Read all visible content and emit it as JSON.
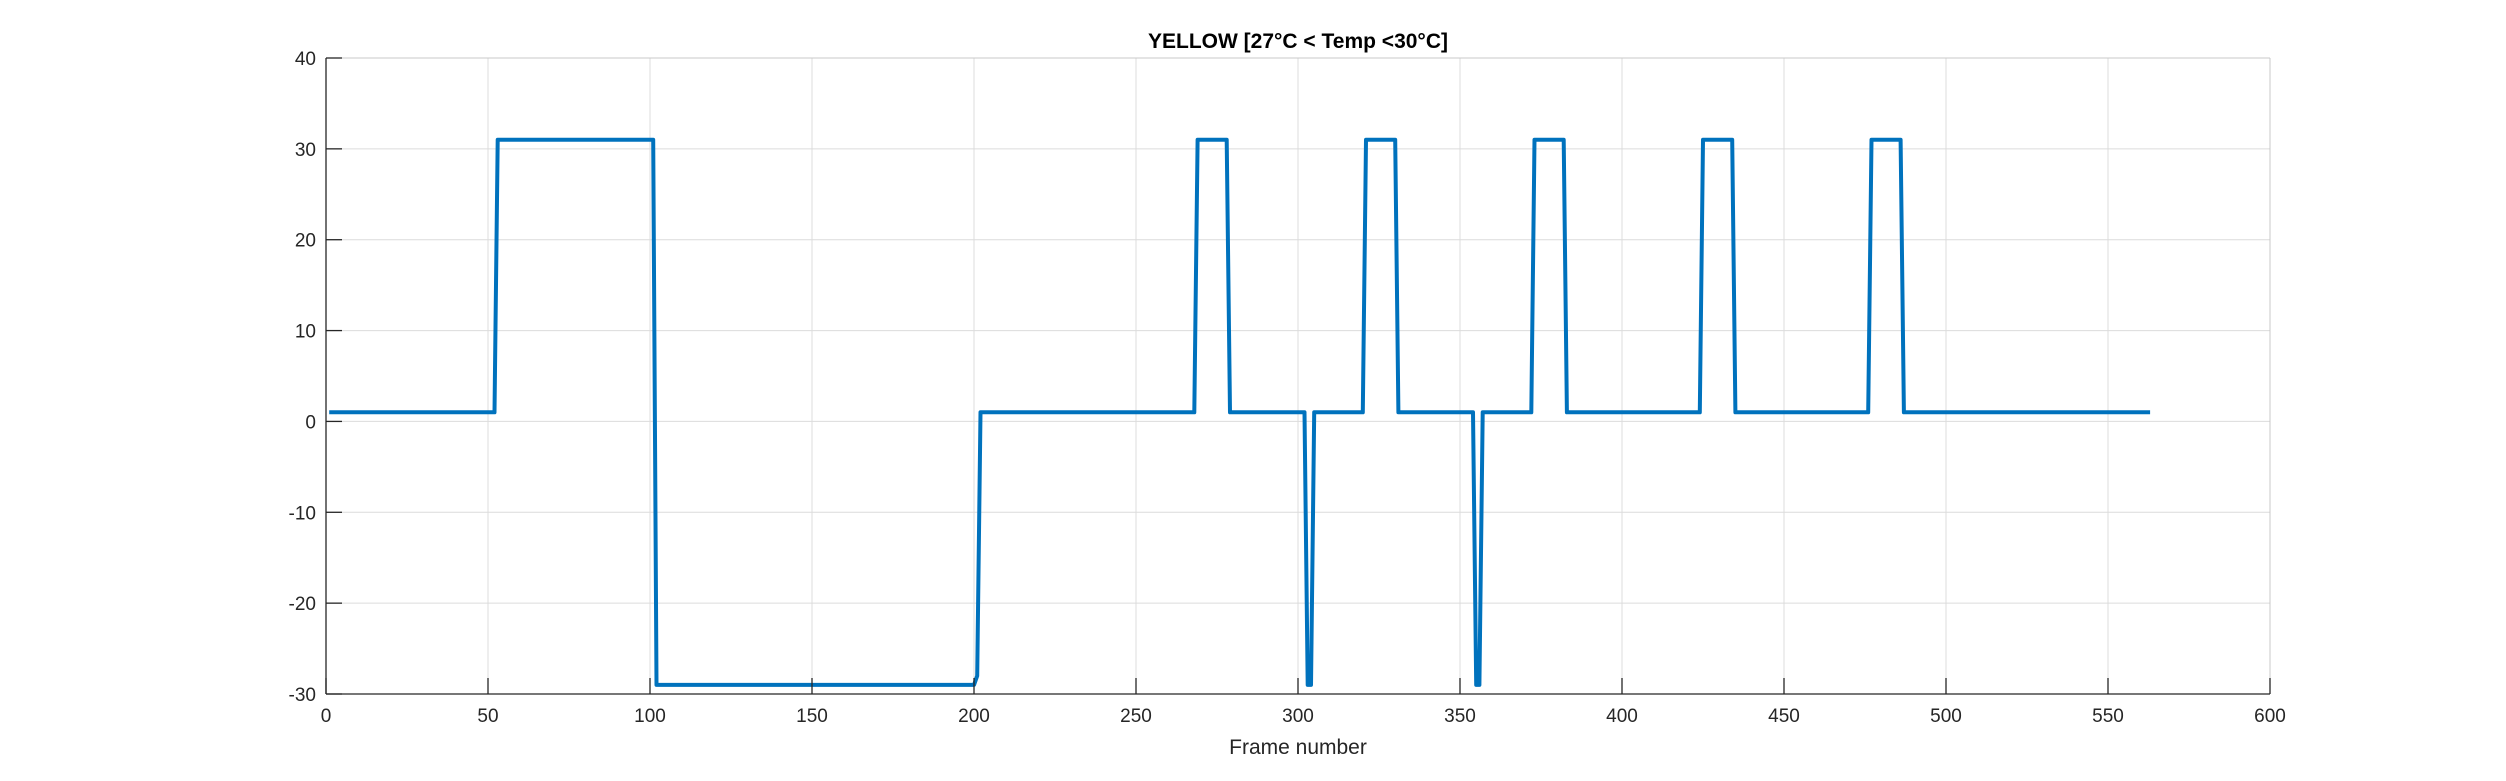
{
  "chart_data": {
    "type": "line",
    "title": "YELLOW [27°C < Temp <30°C]",
    "xlabel": "Frame number",
    "ylabel": "",
    "xlim": [
      0,
      600
    ],
    "ylim": [
      -30,
      40
    ],
    "xticks": [
      0,
      50,
      100,
      150,
      200,
      250,
      300,
      350,
      400,
      450,
      500,
      550,
      600
    ],
    "yticks": [
      -30,
      -20,
      -10,
      0,
      10,
      20,
      30,
      40
    ],
    "grid": true,
    "line_color": "#0072BD",
    "grid_color": "#DCDCDC",
    "axis_color": "#262626",
    "series": [
      {
        "name": "",
        "x": [
          1,
          52,
          53,
          101,
          102,
          200,
          201,
          202,
          268,
          269,
          278,
          279,
          302,
          303,
          304,
          305,
          320,
          321,
          330,
          331,
          354,
          355,
          356,
          357,
          372,
          373,
          382,
          383,
          424,
          425,
          434,
          435,
          476,
          477,
          486,
          487,
          563
        ],
        "y": [
          1,
          1,
          31,
          31,
          -29,
          -29,
          -28,
          1,
          1,
          31,
          31,
          1,
          1,
          -29,
          -29,
          1,
          1,
          31,
          31,
          1,
          1,
          -29,
          -29,
          1,
          1,
          31,
          31,
          1,
          1,
          31,
          31,
          1,
          1,
          31,
          31,
          1,
          1
        ]
      }
    ]
  }
}
